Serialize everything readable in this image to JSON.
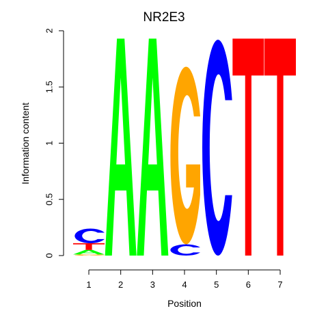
{
  "chart_data": {
    "type": "sequence-logo",
    "title": "NR2E3",
    "xlabel": "Position",
    "ylabel": "Information content",
    "ylim": [
      0,
      2
    ],
    "y_ticks": [
      "0",
      "0.5",
      "1",
      "1.5",
      "2"
    ],
    "x_ticks": [
      "1",
      "2",
      "3",
      "4",
      "5",
      "6",
      "7"
    ],
    "colors": {
      "A": "#00ff00",
      "C": "#0000ff",
      "G": "#ffa500",
      "T": "#ff0000"
    },
    "positions": [
      {
        "pos": "1",
        "stack": [
          {
            "letter": "G",
            "height": 0.01
          },
          {
            "letter": "A",
            "height": 0.04
          },
          {
            "letter": "T",
            "height": 0.06
          },
          {
            "letter": "C",
            "height": 0.13
          }
        ]
      },
      {
        "pos": "2",
        "stack": [
          {
            "letter": "A",
            "height": 1.93
          }
        ]
      },
      {
        "pos": "3",
        "stack": [
          {
            "letter": "A",
            "height": 1.93
          }
        ]
      },
      {
        "pos": "4",
        "stack": [
          {
            "letter": "C",
            "height": 0.1
          },
          {
            "letter": "G",
            "height": 1.58
          }
        ]
      },
      {
        "pos": "5",
        "stack": [
          {
            "letter": "C",
            "height": 1.92
          }
        ]
      },
      {
        "pos": "6",
        "stack": [
          {
            "letter": "T",
            "height": 1.93
          }
        ]
      },
      {
        "pos": "7",
        "stack": [
          {
            "letter": "T",
            "height": 1.93
          }
        ]
      }
    ]
  }
}
